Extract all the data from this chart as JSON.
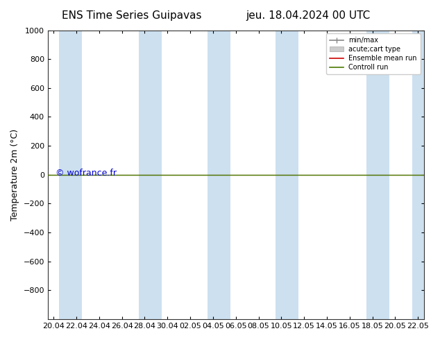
{
  "title_left": "ENS Time Series Guipavas",
  "title_right": "jeu. 18.04.2024 00 UTC",
  "ylabel": "Temperature 2m (°C)",
  "ylim_top": -1000,
  "ylim_bottom": 1000,
  "yticks": [
    -800,
    -600,
    -400,
    -200,
    0,
    200,
    400,
    600,
    800,
    1000
  ],
  "xtick_labels": [
    "20.04",
    "22.04",
    "24.04",
    "26.04",
    "28.04",
    "30.04",
    "02.05",
    "04.05",
    "06.05",
    "08.05",
    "10.05",
    "12.05",
    "14.05",
    "16.05",
    "18.05",
    "20.05",
    "22.05"
  ],
  "xtick_positions": [
    0,
    2,
    4,
    6,
    8,
    10,
    12,
    14,
    16,
    18,
    20,
    22,
    24,
    26,
    28,
    30,
    32
  ],
  "bg_color": "#ffffff",
  "plot_bg_color": "#ffffff",
  "band_color": "#cce0f0",
  "band_pairs": [
    [
      0.5,
      2.5
    ],
    [
      7.5,
      9.5
    ],
    [
      13.5,
      15.5
    ],
    [
      19.5,
      21.5
    ],
    [
      27.5,
      29.5
    ],
    [
      31.5,
      33.5
    ]
  ],
  "control_run_color": "#4a7a00",
  "ensemble_mean_color": "#cc0000",
  "watermark": "© wofrance.fr",
  "watermark_color": "#0000cc",
  "legend_entries": [
    "min/max",
    "acute;cart type",
    "Ensemble mean run",
    "Controll run"
  ],
  "legend_minmax_color": "#888888",
  "legend_cart_color": "#cccccc",
  "title_fontsize": 11,
  "axis_label_fontsize": 9,
  "tick_fontsize": 8,
  "legend_fontsize": 7
}
